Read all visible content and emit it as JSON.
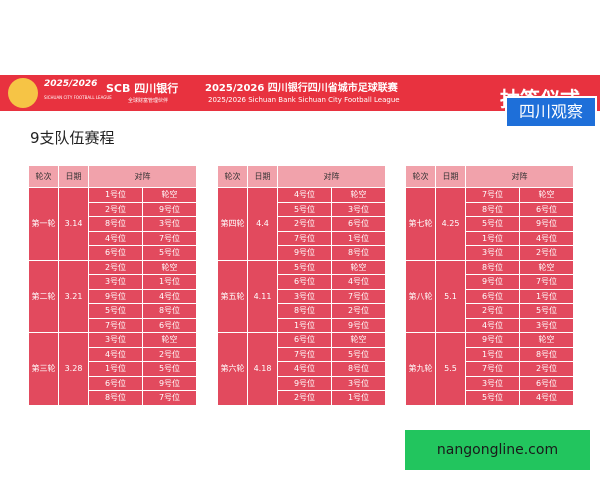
{
  "header": {
    "logo_year": "2025/2026",
    "logo_caption": "SICHUAN CITY FOOTBALL LEAGUE",
    "bank": "SCB 四川银行",
    "bank_caption": "全球财富管理伙伴",
    "title": "2025/2026 四川银行四川省城市足球联赛",
    "title_en": "2025/2026 Sichuan Bank Sichuan City Football League",
    "ceremony": "抽签仪式",
    "badge": "四川观察"
  },
  "subtitle": "9支队伍赛程",
  "tables": [
    {
      "headers": [
        "轮次",
        "日期",
        "对阵"
      ],
      "rounds": [
        {
          "round": "第一轮",
          "date": "3.14",
          "matches": [
            [
              "1号位",
              "轮空"
            ],
            [
              "2号位",
              "9号位"
            ],
            [
              "8号位",
              "3号位"
            ],
            [
              "4号位",
              "7号位"
            ],
            [
              "6号位",
              "5号位"
            ]
          ]
        },
        {
          "round": "第二轮",
          "date": "3.21",
          "matches": [
            [
              "2号位",
              "轮空"
            ],
            [
              "3号位",
              "1号位"
            ],
            [
              "9号位",
              "4号位"
            ],
            [
              "5号位",
              "8号位"
            ],
            [
              "7号位",
              "6号位"
            ]
          ]
        },
        {
          "round": "第三轮",
          "date": "3.28",
          "matches": [
            [
              "3号位",
              "轮空"
            ],
            [
              "4号位",
              "2号位"
            ],
            [
              "1号位",
              "5号位"
            ],
            [
              "6号位",
              "9号位"
            ],
            [
              "8号位",
              "7号位"
            ]
          ]
        }
      ]
    },
    {
      "headers": [
        "轮次",
        "日期",
        "对阵"
      ],
      "rounds": [
        {
          "round": "第四轮",
          "date": "4.4",
          "matches": [
            [
              "4号位",
              "轮空"
            ],
            [
              "5号位",
              "3号位"
            ],
            [
              "2号位",
              "6号位"
            ],
            [
              "7号位",
              "1号位"
            ],
            [
              "9号位",
              "8号位"
            ]
          ]
        },
        {
          "round": "第五轮",
          "date": "4.11",
          "matches": [
            [
              "5号位",
              "轮空"
            ],
            [
              "6号位",
              "4号位"
            ],
            [
              "3号位",
              "7号位"
            ],
            [
              "8号位",
              "2号位"
            ],
            [
              "1号位",
              "9号位"
            ]
          ]
        },
        {
          "round": "第六轮",
          "date": "4.18",
          "matches": [
            [
              "6号位",
              "轮空"
            ],
            [
              "7号位",
              "5号位"
            ],
            [
              "4号位",
              "8号位"
            ],
            [
              "9号位",
              "3号位"
            ],
            [
              "2号位",
              "1号位"
            ]
          ]
        }
      ]
    },
    {
      "headers": [
        "轮次",
        "日期",
        "对阵"
      ],
      "rounds": [
        {
          "round": "第七轮",
          "date": "4.25",
          "matches": [
            [
              "7号位",
              "轮空"
            ],
            [
              "8号位",
              "6号位"
            ],
            [
              "5号位",
              "9号位"
            ],
            [
              "1号位",
              "4号位"
            ],
            [
              "3号位",
              "2号位"
            ]
          ]
        },
        {
          "round": "第八轮",
          "date": "5.1",
          "matches": [
            [
              "8号位",
              "轮空"
            ],
            [
              "9号位",
              "7号位"
            ],
            [
              "6号位",
              "1号位"
            ],
            [
              "2号位",
              "5号位"
            ],
            [
              "4号位",
              "3号位"
            ]
          ]
        },
        {
          "round": "第九轮",
          "date": "5.5",
          "matches": [
            [
              "9号位",
              "轮空"
            ],
            [
              "1号位",
              "8号位"
            ],
            [
              "7号位",
              "2号位"
            ],
            [
              "3号位",
              "6号位"
            ],
            [
              "5号位",
              "4号位"
            ]
          ]
        }
      ]
    }
  ],
  "watermark": "nangongline.com"
}
